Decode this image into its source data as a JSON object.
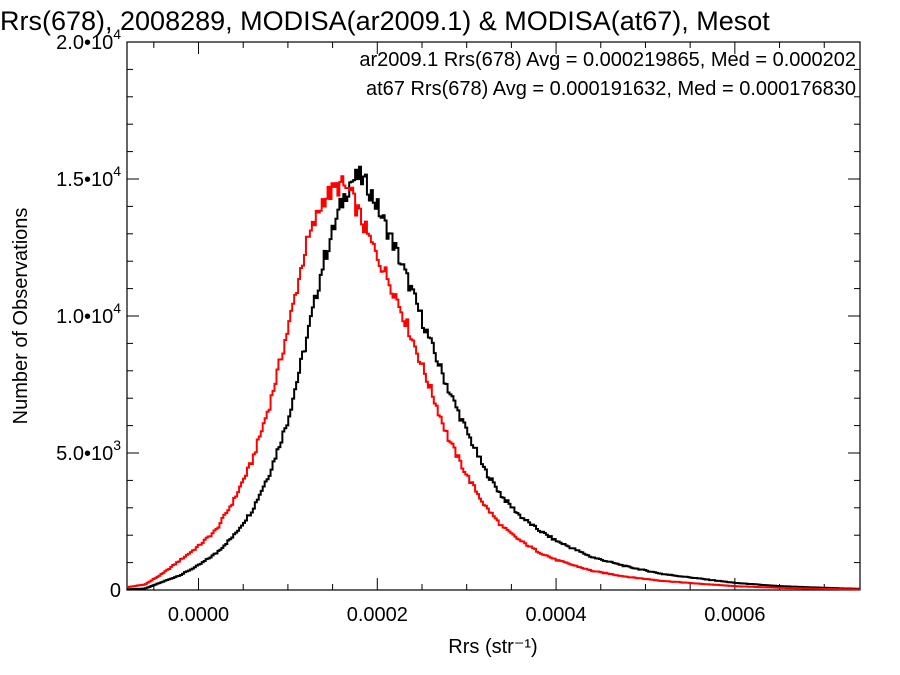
{
  "chart_data": {
    "type": "line",
    "title": "Rrs(678), 2008289, MODISA(ar2009.1) & MODISA(at67), Mesot",
    "xlabel": "Rrs (str⁻¹)",
    "ylabel": "Number of Observations",
    "xlim": [
      -8e-05,
      0.00074
    ],
    "ylim": [
      0,
      20000
    ],
    "xticks": [
      {
        "value": 0.0,
        "label": "0.0000"
      },
      {
        "value": 0.0002,
        "label": "0.0002"
      },
      {
        "value": 0.0004,
        "label": "0.0004"
      },
      {
        "value": 0.0006,
        "label": "0.0006"
      }
    ],
    "yticks": [
      {
        "value": 0,
        "mant": "0",
        "exp": ""
      },
      {
        "value": 5000,
        "mant": "5.0•10",
        "exp": "3"
      },
      {
        "value": 10000,
        "mant": "1.0•10",
        "exp": "4"
      },
      {
        "value": 15000,
        "mant": "1.5•10",
        "exp": "4"
      },
      {
        "value": 20000,
        "mant": "2.0•10",
        "exp": "4"
      }
    ],
    "legend_position": "top-right",
    "annotations": [
      {
        "text": "ar2009.1 Rrs(678) Avg = 0.000219865, Med = 0.000202",
        "color": "#000000"
      },
      {
        "text": "at67 Rrs(678) Avg = 0.000191632, Med = 0.000176830",
        "color": "#ff0000"
      }
    ],
    "series": [
      {
        "color": "#000000",
        "style": "histogram-step",
        "x": [
          -6e-05,
          -4e-05,
          -2e-05,
          0.0,
          2e-05,
          4e-05,
          6e-05,
          8e-05,
          0.0001,
          0.00012,
          0.00014,
          0.00016,
          0.00017,
          0.00018,
          0.00019,
          0.0002,
          0.00022,
          0.00024,
          0.00026,
          0.00028,
          0.0003,
          0.00032,
          0.00034,
          0.00036,
          0.00038,
          0.0004,
          0.00044,
          0.00048,
          0.00052,
          0.00056,
          0.0006,
          0.00065,
          0.0007,
          0.00074
        ],
        "y": [
          50,
          300,
          550,
          900,
          1350,
          2000,
          2900,
          4300,
          6200,
          9000,
          12000,
          14100,
          14900,
          15100,
          14700,
          14000,
          12500,
          10800,
          9000,
          7300,
          5800,
          4400,
          3400,
          2700,
          2200,
          1800,
          1200,
          850,
          580,
          420,
          260,
          140,
          80,
          40
        ]
      },
      {
        "color": "#ff0000",
        "style": "histogram-step",
        "x": [
          -6e-05,
          -4e-05,
          -2e-05,
          0.0,
          2e-05,
          4e-05,
          6e-05,
          8e-05,
          0.0001,
          0.00012,
          0.00014,
          0.00016,
          0.00017,
          0.00018,
          0.00019,
          0.0002,
          0.00022,
          0.00024,
          0.00026,
          0.00028,
          0.0003,
          0.00032,
          0.00034,
          0.00036,
          0.00038,
          0.0004,
          0.00044,
          0.00048,
          0.00052,
          0.00056,
          0.0006,
          0.00065,
          0.0007,
          0.00074
        ],
        "y": [
          200,
          600,
          1100,
          1600,
          2200,
          3300,
          4700,
          6800,
          9500,
          12500,
          14300,
          14800,
          14500,
          13700,
          12900,
          12200,
          10800,
          9100,
          7300,
          5500,
          4200,
          3100,
          2300,
          1800,
          1400,
          1100,
          700,
          480,
          330,
          230,
          140,
          80,
          40,
          20
        ]
      }
    ]
  }
}
